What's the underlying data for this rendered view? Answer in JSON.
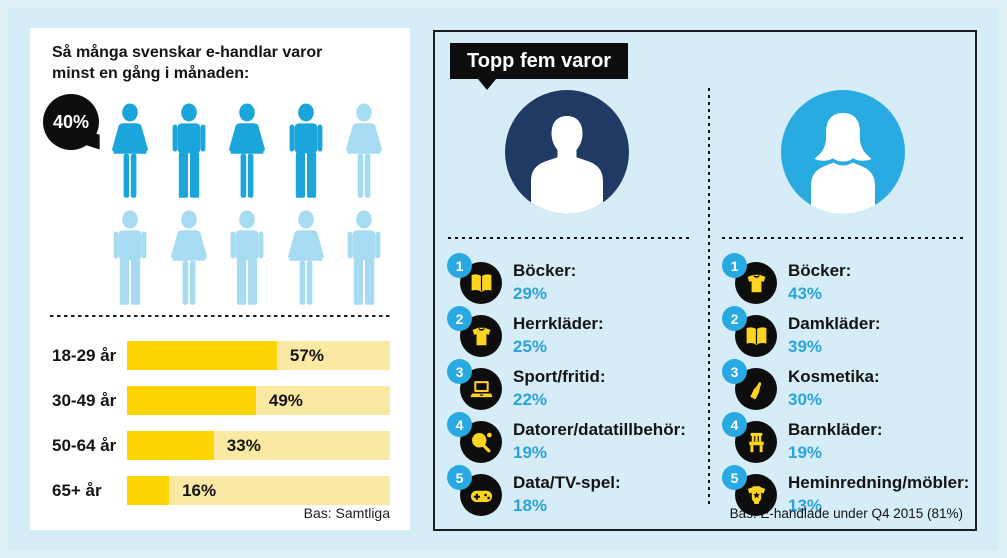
{
  "colors": {
    "page_bg": "#d6ecf6",
    "card_bg": "#ffffff",
    "black": "#0d0d0d",
    "active_blue": "#1ba5da",
    "inactive_blue": "#a7dbf1",
    "bar_yellow": "#fed402",
    "bar_track": "#fae9a3",
    "value_blue": "#2aa4da",
    "badge_blue": "#29a9e1",
    "male_navy": "#203a63",
    "female_blue": "#29abe2",
    "icon_yellow": "#fdd41f"
  },
  "left_panel": {
    "title_line1": "Så många svenskar e-handlar varor",
    "title_line2": "minst en gång i månaden:",
    "highlight_value": "40%",
    "pictogram": {
      "figures": [
        {
          "type": "woman",
          "active": true
        },
        {
          "type": "man",
          "active": true
        },
        {
          "type": "woman",
          "active": true
        },
        {
          "type": "man",
          "active": true
        },
        {
          "type": "woman",
          "active": false
        },
        {
          "type": "man",
          "active": false
        },
        {
          "type": "woman",
          "active": false
        },
        {
          "type": "man",
          "active": false
        },
        {
          "type": "woman",
          "active": false
        },
        {
          "type": "man",
          "active": false
        }
      ]
    },
    "source": "Bas: Samtliga"
  },
  "right_panel": {
    "header": "Topp fem varor",
    "source": "Bas: E-handlade under Q4 2015 (81%)",
    "columns": [
      {
        "name": "men",
        "avatar": "male-avatar-icon",
        "items": [
          {
            "rank": "1",
            "icon": "open-book-icon",
            "label": "Böcker:",
            "value": "29%"
          },
          {
            "rank": "2",
            "icon": "sweater-icon",
            "label": "Herrkläder:",
            "value": "25%"
          },
          {
            "rank": "3",
            "icon": "laptop-icon",
            "label": "Sport/fritid:",
            "value": "22%"
          },
          {
            "rank": "4",
            "icon": "table-tennis-icon",
            "label": "Datorer/datatillbehör:",
            "value": "19%"
          },
          {
            "rank": "5",
            "icon": "gamepad-icon",
            "label": "Data/TV-spel:",
            "value": "18%"
          }
        ]
      },
      {
        "name": "women",
        "avatar": "female-avatar-icon",
        "items": [
          {
            "rank": "1",
            "icon": "sweater-icon",
            "label": "Böcker:",
            "value": "43%"
          },
          {
            "rank": "2",
            "icon": "open-book-icon",
            "label": "Damkläder:",
            "value": "39%"
          },
          {
            "rank": "3",
            "icon": "lipstick-icon",
            "label": "Kosmetika:",
            "value": "30%"
          },
          {
            "rank": "4",
            "icon": "chair-icon",
            "label": "Barnkläder:",
            "value": "19%"
          },
          {
            "rank": "5",
            "icon": "baby-onesie-icon",
            "label": "Heminredning/möbler:",
            "value": "13%"
          }
        ]
      }
    ]
  },
  "chart_data": [
    {
      "type": "pictogram",
      "title": "Så många svenskar e-handlar varor minst en gång i månaden:",
      "value": 40,
      "value_label": "40%",
      "total_figures": 10,
      "highlighted_figures": 4
    },
    {
      "type": "bar",
      "orientation": "horizontal",
      "categories": [
        "18-29 år",
        "30-49 år",
        "50-64 år",
        "65+ år"
      ],
      "values": [
        57,
        49,
        33,
        16
      ],
      "value_labels": [
        "57%",
        "49%",
        "33%",
        "16%"
      ],
      "unit": "%",
      "xlim": [
        0,
        100
      ],
      "note": "Bas: Samtliga"
    },
    {
      "type": "table",
      "title": "Topp fem varor — män",
      "categories": [
        "Böcker",
        "Herrkläder",
        "Sport/fritid",
        "Datorer/datatillbehör",
        "Data/TV-spel"
      ],
      "values": [
        29,
        25,
        22,
        19,
        18
      ],
      "unit": "%"
    },
    {
      "type": "table",
      "title": "Topp fem varor — kvinnor",
      "categories": [
        "Böcker",
        "Damkläder",
        "Kosmetika",
        "Barnkläder",
        "Heminredning/möbler"
      ],
      "values": [
        43,
        39,
        30,
        19,
        13
      ],
      "unit": "%",
      "note": "Bas: E-handlade under Q4 2015 (81%)"
    }
  ]
}
